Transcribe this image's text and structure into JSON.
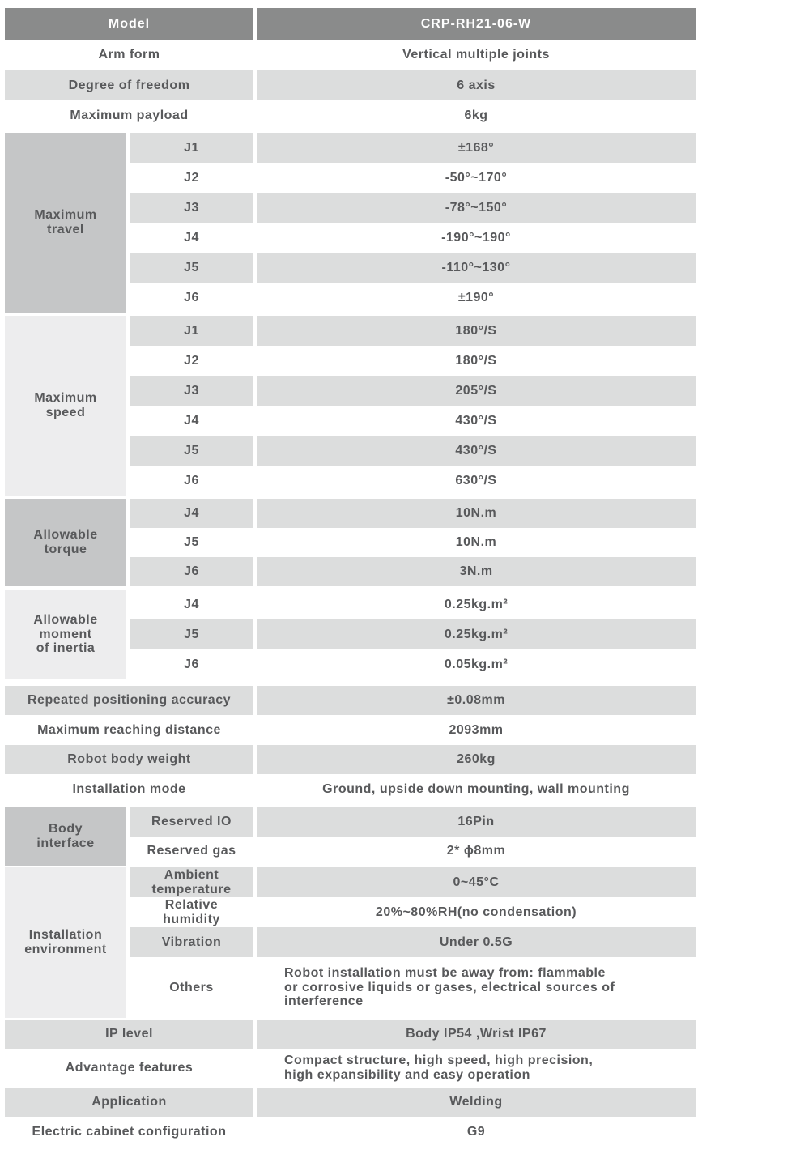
{
  "table": {
    "header": {
      "label": "Model",
      "value": "CRP-RH21-06-W"
    },
    "top_rows": [
      {
        "label": "Arm form",
        "value": "Vertical multiple joints"
      },
      {
        "label": "Degree of freedom",
        "value": "6 axis"
      },
      {
        "label": "Maximum payload",
        "value": "6kg"
      }
    ],
    "maximum_travel": {
      "label": "Maximum\ntravel",
      "rows": [
        {
          "joint": "J1",
          "value": "±168°"
        },
        {
          "joint": "J2",
          "value": "-50°~170°"
        },
        {
          "joint": "J3",
          "value": "-78°~150°"
        },
        {
          "joint": "J4",
          "value": "-190°~190°"
        },
        {
          "joint": "J5",
          "value": "-110°~130°"
        },
        {
          "joint": "J6",
          "value": "±190°"
        }
      ]
    },
    "maximum_speed": {
      "label": "Maximum\nspeed",
      "rows": [
        {
          "joint": "J1",
          "value": "180°/S"
        },
        {
          "joint": "J2",
          "value": "180°/S"
        },
        {
          "joint": "J3",
          "value": "205°/S"
        },
        {
          "joint": "J4",
          "value": "430°/S"
        },
        {
          "joint": "J5",
          "value": "430°/S"
        },
        {
          "joint": "J6",
          "value": "630°/S"
        }
      ]
    },
    "allowable_torque": {
      "label": "Allowable\ntorque",
      "rows": [
        {
          "joint": "J4",
          "value": "10N.m"
        },
        {
          "joint": "J5",
          "value": "10N.m"
        },
        {
          "joint": "J6",
          "value": "3N.m"
        }
      ]
    },
    "allowable_inertia": {
      "label": "Allowable\nmoment\nof inertia",
      "rows": [
        {
          "joint": "J4",
          "value": "0.25kg.m²"
        },
        {
          "joint": "J5",
          "value": "0.25kg.m²"
        },
        {
          "joint": "J6",
          "value": "0.05kg.m²"
        }
      ]
    },
    "mid_rows": [
      {
        "label": "Repeated positioning accuracy",
        "value": "±0.08mm"
      },
      {
        "label": "Maximum reaching distance",
        "value": "2093mm"
      },
      {
        "label": "Robot body weight",
        "value": "260kg"
      },
      {
        "label": "Installation mode",
        "value": "Ground, upside down mounting,  wall mounting"
      }
    ],
    "body_interface": {
      "label": "Body\ninterface",
      "rows": [
        {
          "name": "Reserved IO",
          "value": "16Pin"
        },
        {
          "name": "Reserved gas",
          "value": "2* ϕ8mm"
        }
      ]
    },
    "installation_environment": {
      "label": "Installation\nenvironment",
      "rows": [
        {
          "name": "Ambient\ntemperature",
          "value": "0~45°C"
        },
        {
          "name": "Relative\nhumidity",
          "value": "20%~80%RH(no condensation)"
        },
        {
          "name": "Vibration",
          "value": "Under 0.5G"
        },
        {
          "name": "Others",
          "value": "Robot installation must be away from: flammable\nor corrosive liquids or gases, electrical sources of\ninterference"
        }
      ]
    },
    "bottom_rows": [
      {
        "label": "IP level",
        "value": "Body IP54 ,Wrist IP67"
      },
      {
        "label": "Advantage features",
        "value": "Compact structure, high speed, high precision,\nhigh expansibility and easy operation"
      },
      {
        "label": "Application",
        "value": "Welding"
      },
      {
        "label": "Electric cabinet configuration",
        "value": "G9"
      }
    ],
    "colors": {
      "header_bg": "#8a8b8b",
      "stripe_bg": "#dcdddd",
      "group_dark_bg": "#c5c6c7",
      "group_light_bg": "#ededee",
      "text": "#58595b"
    }
  }
}
